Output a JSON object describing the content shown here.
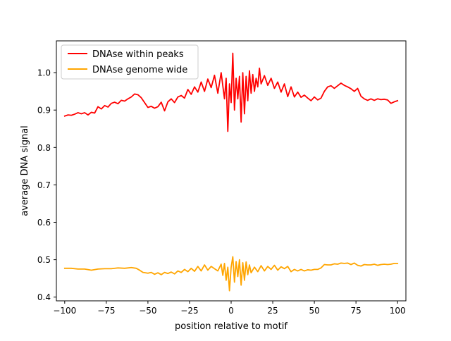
{
  "chart_data": {
    "type": "line",
    "title": "",
    "xlabel": "position relative to motif",
    "ylabel": "average DNA signal",
    "xlim": [
      -105,
      105
    ],
    "ylim": [
      0.39,
      1.085
    ],
    "x_ticks": [
      -100,
      -75,
      -50,
      -25,
      0,
      25,
      50,
      75,
      100
    ],
    "y_ticks": [
      0.4,
      0.5,
      0.6,
      0.7,
      0.8,
      0.9,
      1.0
    ],
    "x_tick_labels": [
      "−100",
      "−75",
      "−50",
      "−25",
      "0",
      "25",
      "50",
      "75",
      "100"
    ],
    "y_tick_labels": [
      "0.4",
      "0.5",
      "0.6",
      "0.7",
      "0.8",
      "0.9",
      "1.0"
    ],
    "grid": false,
    "legend_position": "upper-left",
    "series": [
      {
        "name": "DNAse within peaks",
        "color": "#ff0000",
        "points": [
          [
            -100,
            0.884
          ],
          [
            -98,
            0.887
          ],
          [
            -96,
            0.886
          ],
          [
            -94,
            0.889
          ],
          [
            -92,
            0.893
          ],
          [
            -90,
            0.89
          ],
          [
            -88,
            0.893
          ],
          [
            -86,
            0.887
          ],
          [
            -84,
            0.894
          ],
          [
            -82,
            0.892
          ],
          [
            -80,
            0.909
          ],
          [
            -78,
            0.903
          ],
          [
            -76,
            0.912
          ],
          [
            -74,
            0.908
          ],
          [
            -72,
            0.918
          ],
          [
            -70,
            0.921
          ],
          [
            -68,
            0.917
          ],
          [
            -66,
            0.926
          ],
          [
            -64,
            0.924
          ],
          [
            -62,
            0.93
          ],
          [
            -60,
            0.935
          ],
          [
            -58,
            0.943
          ],
          [
            -56,
            0.941
          ],
          [
            -54,
            0.933
          ],
          [
            -52,
            0.92
          ],
          [
            -50,
            0.907
          ],
          [
            -48,
            0.91
          ],
          [
            -46,
            0.905
          ],
          [
            -44,
            0.909
          ],
          [
            -42,
            0.921
          ],
          [
            -40,
            0.898
          ],
          [
            -38,
            0.922
          ],
          [
            -36,
            0.93
          ],
          [
            -34,
            0.92
          ],
          [
            -32,
            0.935
          ],
          [
            -30,
            0.939
          ],
          [
            -28,
            0.932
          ],
          [
            -26,
            0.955
          ],
          [
            -24,
            0.942
          ],
          [
            -22,
            0.962
          ],
          [
            -20,
            0.948
          ],
          [
            -18,
            0.975
          ],
          [
            -16,
            0.95
          ],
          [
            -14,
            0.983
          ],
          [
            -12,
            0.96
          ],
          [
            -10,
            0.993
          ],
          [
            -8,
            0.945
          ],
          [
            -6,
            1.0
          ],
          [
            -4,
            0.93
          ],
          [
            -3,
            0.985
          ],
          [
            -2,
            0.843
          ],
          [
            -1,
            0.97
          ],
          [
            0,
            0.92
          ],
          [
            1,
            1.052
          ],
          [
            2,
            0.9
          ],
          [
            3,
            0.985
          ],
          [
            4,
            0.93
          ],
          [
            5,
            0.99
          ],
          [
            6,
            0.868
          ],
          [
            7,
            1.0
          ],
          [
            8,
            0.89
          ],
          [
            9,
            0.99
          ],
          [
            10,
            0.925
          ],
          [
            11,
            1.005
          ],
          [
            12,
            0.945
          ],
          [
            13,
            0.995
          ],
          [
            14,
            0.95
          ],
          [
            15,
            0.985
          ],
          [
            16,
            0.962
          ],
          [
            17,
            1.012
          ],
          [
            18,
            0.97
          ],
          [
            20,
            0.992
          ],
          [
            22,
            0.966
          ],
          [
            24,
            0.985
          ],
          [
            26,
            0.958
          ],
          [
            28,
            0.975
          ],
          [
            30,
            0.948
          ],
          [
            32,
            0.97
          ],
          [
            34,
            0.936
          ],
          [
            36,
            0.962
          ],
          [
            38,
            0.935
          ],
          [
            40,
            0.948
          ],
          [
            42,
            0.934
          ],
          [
            44,
            0.94
          ],
          [
            46,
            0.932
          ],
          [
            48,
            0.925
          ],
          [
            50,
            0.935
          ],
          [
            52,
            0.927
          ],
          [
            54,
            0.932
          ],
          [
            56,
            0.95
          ],
          [
            58,
            0.962
          ],
          [
            60,
            0.965
          ],
          [
            62,
            0.958
          ],
          [
            64,
            0.965
          ],
          [
            66,
            0.972
          ],
          [
            68,
            0.966
          ],
          [
            70,
            0.962
          ],
          [
            72,
            0.957
          ],
          [
            74,
            0.95
          ],
          [
            76,
            0.958
          ],
          [
            78,
            0.937
          ],
          [
            80,
            0.93
          ],
          [
            82,
            0.926
          ],
          [
            84,
            0.93
          ],
          [
            86,
            0.926
          ],
          [
            88,
            0.93
          ],
          [
            90,
            0.928
          ],
          [
            92,
            0.929
          ],
          [
            94,
            0.927
          ],
          [
            96,
            0.918
          ],
          [
            98,
            0.922
          ],
          [
            100,
            0.925
          ]
        ]
      },
      {
        "name": "DNAse genome wide",
        "color": "#ffa500",
        "points": [
          [
            -100,
            0.477
          ],
          [
            -96,
            0.477
          ],
          [
            -92,
            0.475
          ],
          [
            -88,
            0.475
          ],
          [
            -84,
            0.472
          ],
          [
            -80,
            0.475
          ],
          [
            -76,
            0.476
          ],
          [
            -72,
            0.476
          ],
          [
            -68,
            0.478
          ],
          [
            -64,
            0.477
          ],
          [
            -60,
            0.479
          ],
          [
            -57,
            0.477
          ],
          [
            -55,
            0.472
          ],
          [
            -53,
            0.466
          ],
          [
            -50,
            0.464
          ],
          [
            -48,
            0.466
          ],
          [
            -46,
            0.461
          ],
          [
            -44,
            0.465
          ],
          [
            -42,
            0.46
          ],
          [
            -40,
            0.466
          ],
          [
            -38,
            0.463
          ],
          [
            -36,
            0.467
          ],
          [
            -34,
            0.462
          ],
          [
            -32,
            0.47
          ],
          [
            -30,
            0.466
          ],
          [
            -28,
            0.474
          ],
          [
            -26,
            0.468
          ],
          [
            -24,
            0.477
          ],
          [
            -22,
            0.469
          ],
          [
            -20,
            0.482
          ],
          [
            -18,
            0.47
          ],
          [
            -16,
            0.486
          ],
          [
            -14,
            0.472
          ],
          [
            -12,
            0.482
          ],
          [
            -10,
            0.476
          ],
          [
            -8,
            0.47
          ],
          [
            -6,
            0.488
          ],
          [
            -5,
            0.458
          ],
          [
            -4,
            0.49
          ],
          [
            -3,
            0.445
          ],
          [
            -2,
            0.48
          ],
          [
            -1,
            0.417
          ],
          [
            0,
            0.48
          ],
          [
            1,
            0.508
          ],
          [
            2,
            0.44
          ],
          [
            3,
            0.495
          ],
          [
            4,
            0.455
          ],
          [
            5,
            0.5
          ],
          [
            6,
            0.432
          ],
          [
            7,
            0.492
          ],
          [
            8,
            0.445
          ],
          [
            9,
            0.494
          ],
          [
            10,
            0.46
          ],
          [
            11,
            0.486
          ],
          [
            12,
            0.465
          ],
          [
            14,
            0.48
          ],
          [
            16,
            0.468
          ],
          [
            18,
            0.484
          ],
          [
            20,
            0.47
          ],
          [
            22,
            0.482
          ],
          [
            24,
            0.474
          ],
          [
            26,
            0.485
          ],
          [
            28,
            0.472
          ],
          [
            30,
            0.481
          ],
          [
            32,
            0.476
          ],
          [
            34,
            0.482
          ],
          [
            36,
            0.468
          ],
          [
            38,
            0.474
          ],
          [
            40,
            0.47
          ],
          [
            42,
            0.474
          ],
          [
            44,
            0.47
          ],
          [
            46,
            0.473
          ],
          [
            48,
            0.472
          ],
          [
            50,
            0.474
          ],
          [
            52,
            0.474
          ],
          [
            54,
            0.478
          ],
          [
            56,
            0.487
          ],
          [
            58,
            0.486
          ],
          [
            60,
            0.486
          ],
          [
            62,
            0.489
          ],
          [
            64,
            0.488
          ],
          [
            66,
            0.491
          ],
          [
            68,
            0.49
          ],
          [
            70,
            0.491
          ],
          [
            72,
            0.487
          ],
          [
            74,
            0.491
          ],
          [
            76,
            0.485
          ],
          [
            78,
            0.483
          ],
          [
            80,
            0.487
          ],
          [
            82,
            0.486
          ],
          [
            84,
            0.486
          ],
          [
            86,
            0.488
          ],
          [
            88,
            0.485
          ],
          [
            90,
            0.487
          ],
          [
            92,
            0.488
          ],
          [
            94,
            0.487
          ],
          [
            96,
            0.488
          ],
          [
            98,
            0.49
          ],
          [
            100,
            0.49
          ]
        ]
      }
    ]
  }
}
